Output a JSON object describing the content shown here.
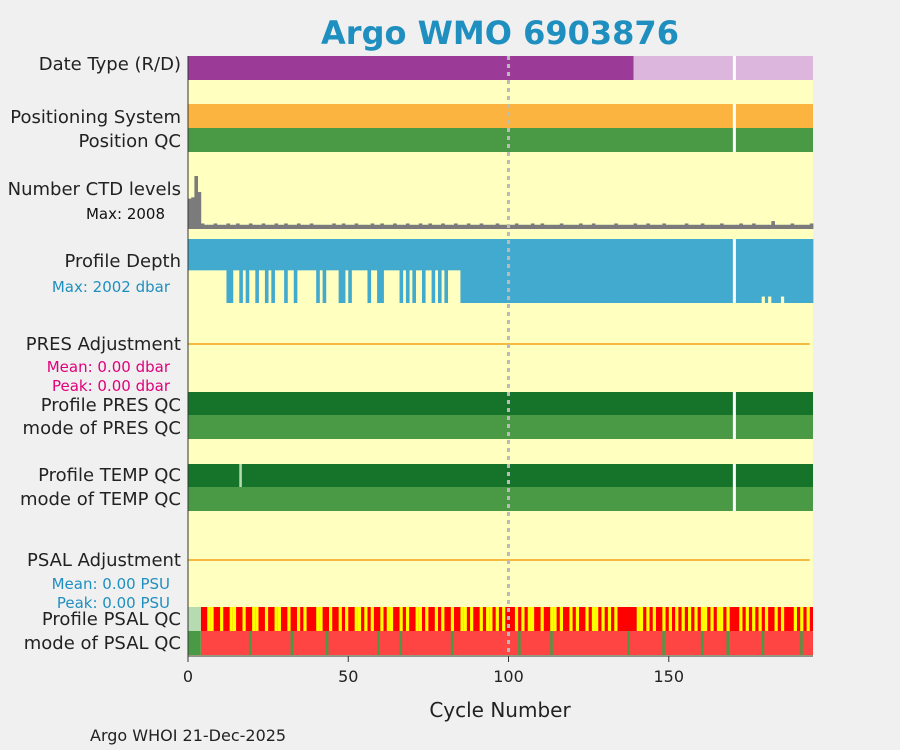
{
  "title": "Argo WMO 6903876",
  "footer": "Argo WHOI 21-Dec-2025",
  "colors": {
    "background": "#ffffc0",
    "title": "#1f8fbf",
    "data_type_real": "#9b3b97",
    "data_type_delayed": "#dcb6dc",
    "positioning": "#fbb440",
    "qc_good": "#4a9a45",
    "qc_good_dark": "#16742a",
    "qc_probably_good": "#b7dbb0",
    "qc_bad": "#ff0000",
    "qc_bad_mode": "#ff4444",
    "qc_probably_bad": "#ffff00",
    "ctd_levels": "#7b7b7b",
    "profile_depth": "#43aacf",
    "adjustment_line": "#f5bb40",
    "pres_stats": "#e0007a",
    "psal_stats": "#1f8fbf",
    "gap": "#ffffff",
    "cycle_marker": "#bbbbbb"
  },
  "chart_data": {
    "type": "bar",
    "xlabel": "Cycle Number",
    "xlim": [
      0,
      195
    ],
    "xticks": [
      0,
      50,
      100,
      150
    ],
    "marker_cycle": 100,
    "gap_cycle": 170,
    "rows": [
      {
        "key": "data_type",
        "label": "Date Type (R/D)",
        "segments": [
          {
            "from": 0,
            "to": 139,
            "color": "data_type_real"
          },
          {
            "from": 139,
            "to": 195,
            "color": "data_type_delayed"
          }
        ]
      },
      {
        "key": "positioning",
        "label": "Positioning System",
        "segments": [
          {
            "from": 0,
            "to": 195,
            "color": "positioning"
          }
        ]
      },
      {
        "key": "position_qc",
        "label": "Position QC",
        "segments": [
          {
            "from": 0,
            "to": 195,
            "color": "qc_good"
          }
        ]
      },
      {
        "key": "ctd_levels",
        "label": "Number CTD levels",
        "stat": "Max: 2008",
        "max": 2008,
        "typical": 300
      },
      {
        "key": "profile_depth",
        "label": "Profile Depth",
        "stat": "Max: 2002 dbar",
        "max": 2002,
        "shallow_threshold": 1000
      },
      {
        "key": "pres_adjustment",
        "label": "PRES Adjustment",
        "stats": [
          "Mean: 0.00 dbar",
          "Peak: 0.00 dbar"
        ],
        "mean": 0.0,
        "peak": 0.0
      },
      {
        "key": "profile_pres_qc",
        "label": "Profile PRES QC",
        "segments": [
          {
            "from": 0,
            "to": 195,
            "color": "qc_good_dark"
          }
        ]
      },
      {
        "key": "mode_pres_qc",
        "label": "mode of PRES QC",
        "segments": [
          {
            "from": 0,
            "to": 195,
            "color": "qc_good"
          }
        ]
      },
      {
        "key": "profile_temp_qc",
        "label": "Profile TEMP QC",
        "segments": [
          {
            "from": 0,
            "to": 195,
            "color": "qc_good_dark"
          }
        ],
        "breaks": [
          16
        ]
      },
      {
        "key": "mode_temp_qc",
        "label": "mode of TEMP QC",
        "segments": [
          {
            "from": 0,
            "to": 195,
            "color": "qc_good"
          }
        ]
      },
      {
        "key": "psal_adjustment",
        "label": "PSAL Adjustment",
        "stats": [
          "Mean: 0.00 PSU",
          "Peak: 0.00 PSU"
        ],
        "mean": 0.0,
        "peak": 0.0
      },
      {
        "key": "profile_psal_qc",
        "label": "Profile PSAL QC"
      },
      {
        "key": "mode_psal_qc",
        "label": "mode of PSAL QC"
      }
    ],
    "profile_psal_qc": {
      "start": [
        {
          "from": 0,
          "to": 4,
          "color": "qc_probably_good"
        }
      ],
      "yellow_cycles": [
        6,
        7,
        10,
        13,
        14,
        17,
        20,
        21,
        24,
        27,
        28,
        31,
        34,
        36,
        40,
        41,
        44,
        47,
        49,
        52,
        53,
        55,
        57,
        60,
        62,
        63,
        66,
        68,
        71,
        72,
        74,
        77,
        79,
        82,
        85,
        86,
        88,
        91,
        93,
        94,
        96,
        98,
        102,
        104,
        106,
        107,
        110,
        113,
        114,
        116,
        119,
        121,
        124,
        126,
        127,
        129,
        131,
        133,
        140,
        141,
        143,
        145,
        148,
        150,
        152,
        154,
        156,
        158,
        160,
        161,
        163,
        165,
        166,
        168,
        172,
        174,
        176,
        178,
        180,
        183,
        185,
        189,
        191,
        193
      ],
      "base_color": "qc_bad"
    },
    "mode_psal_qc": {
      "start": [
        {
          "from": 0,
          "to": 4,
          "color": "qc_good"
        }
      ],
      "green_cycles": [
        19,
        32,
        43,
        59,
        66,
        82,
        103,
        113,
        137,
        148,
        160,
        168,
        179,
        191
      ],
      "base_color": "qc_bad_mode"
    },
    "ctd_levels_series": {
      "early": [
        1150,
        1200,
        2008,
        1400,
        160
      ],
      "baseline": 160,
      "spike_cycles": [
        4,
        8,
        12,
        15,
        19,
        23,
        27,
        30,
        34,
        38,
        45,
        48,
        52,
        57,
        60,
        64,
        68,
        72,
        75,
        79,
        83,
        87,
        91,
        96,
        102,
        107,
        110,
        116,
        122,
        126,
        133,
        139,
        143,
        148,
        155,
        160,
        166,
        172,
        176,
        182,
        188,
        194
      ],
      "spike_height": 210,
      "max_spike_cycle": 182
    },
    "profile_depth_series": {
      "deep_value": 2002,
      "shallow_value": 1000,
      "shallow_until": 86,
      "shallow_cycles": [
        12,
        13,
        16,
        18,
        21,
        24,
        26,
        30,
        33,
        40,
        42,
        47,
        48,
        50,
        56,
        59,
        60,
        66,
        68,
        70,
        73,
        76,
        78,
        80,
        85
      ],
      "late_shallow_cycles": [
        179,
        181,
        185
      ]
    }
  }
}
